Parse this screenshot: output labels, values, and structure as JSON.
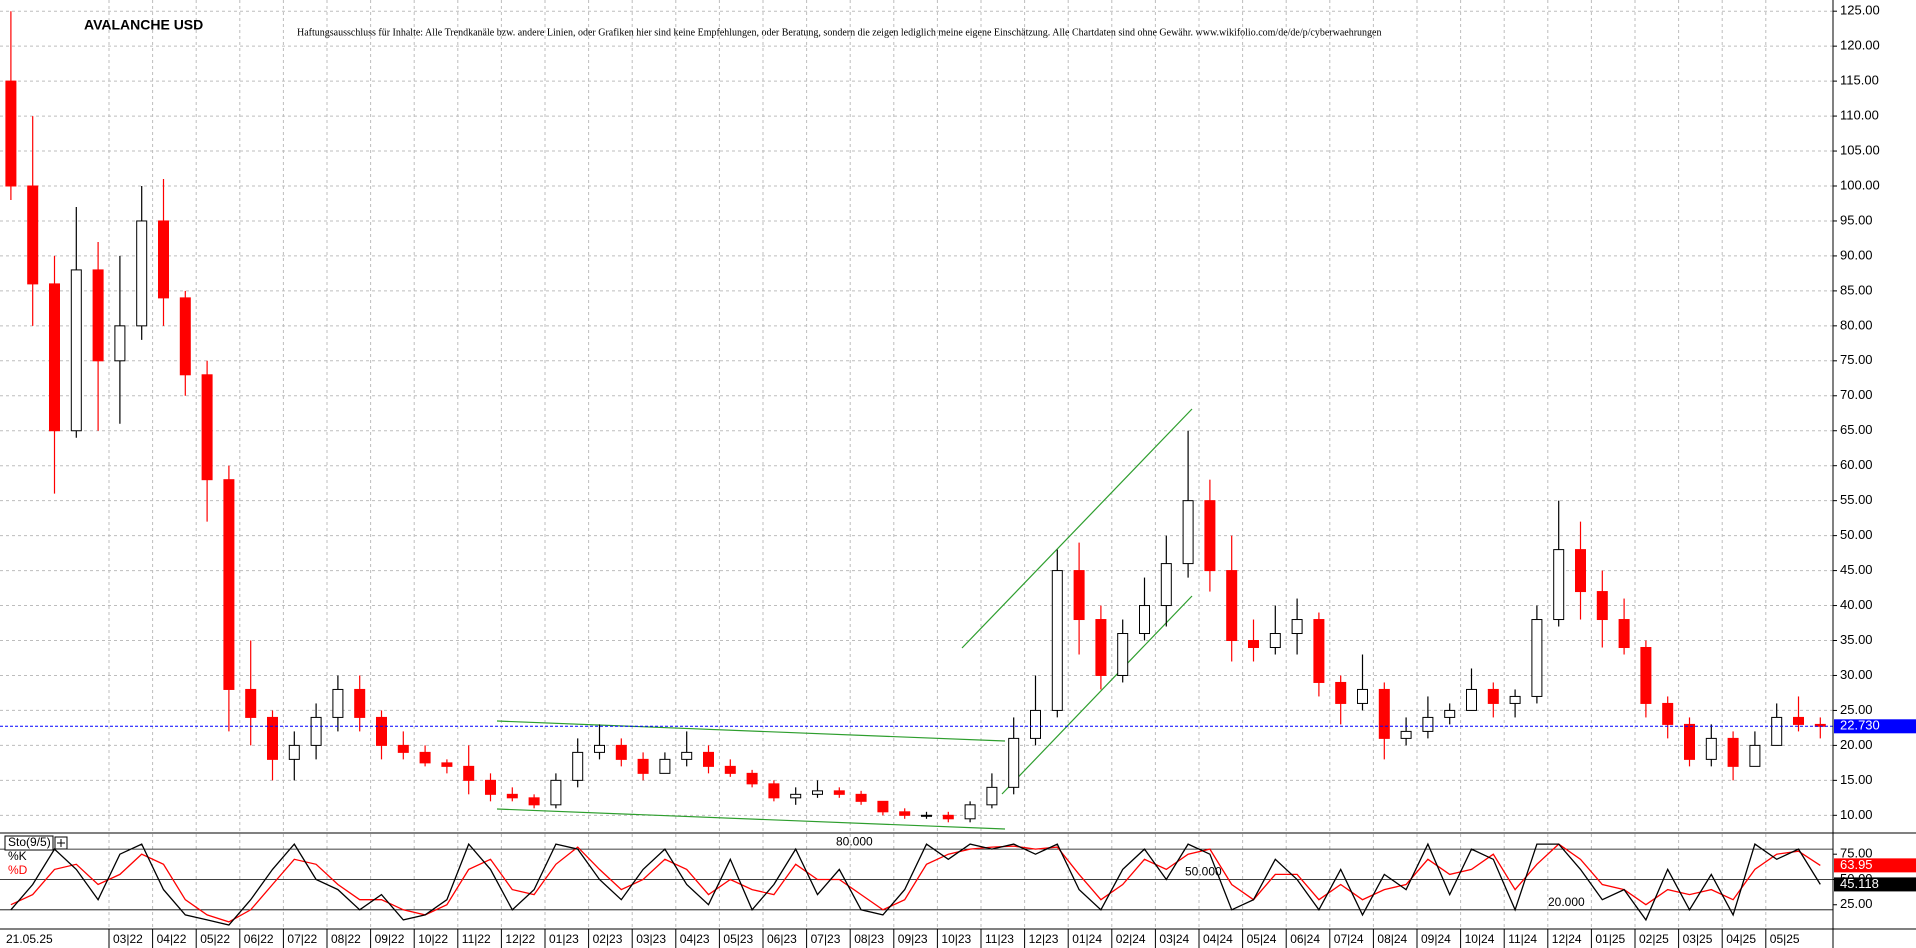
{
  "chart_data": [
    {
      "type": "candlestick",
      "title": "AVALANCHE USD",
      "disclaimer": "Haftungsausschluss für Inhalte: Alle Trendkanäle bzw. andere Linien, oder Grafiken hier sind keine Empfehlungen, oder Beratung, sondern die zeigen lediglich meine eigene Einschätzung. Alle Chartdaten sind ohne Gewähr.  www.wikifolio.com/de/de/p/cyberwaehrungen",
      "date_label": "21.05.25",
      "up_color": "#000000",
      "down_color": "#ff0000",
      "categories": [
        null,
        null,
        null,
        null,
        null,
        "03|22",
        null,
        "04|22",
        null,
        "05|22",
        null,
        "06|22",
        null,
        "07|22",
        null,
        "08|22",
        null,
        "09|22",
        null,
        "10|22",
        null,
        "11|22",
        null,
        "12|22",
        null,
        "01|23",
        null,
        "02|23",
        null,
        "03|23",
        null,
        "04|23",
        null,
        "05|23",
        null,
        "06|23",
        null,
        "07|23",
        null,
        "08|23",
        null,
        "09|23",
        null,
        "10|23",
        null,
        "11|23",
        null,
        "12|23",
        null,
        "01|24",
        null,
        "02|24",
        null,
        "03|24",
        null,
        "04|24",
        null,
        "05|24",
        null,
        "06|24",
        null,
        "07|24",
        null,
        "08|24",
        null,
        "09|24",
        null,
        "10|24",
        null,
        "11|24",
        null,
        "12|24",
        null,
        "01|25",
        null,
        "02|25",
        null,
        "03|25",
        null,
        "04|25",
        null,
        "05|25",
        null,
        null
      ],
      "open": [
        115,
        100,
        86,
        65,
        88,
        75,
        80,
        95,
        84,
        73,
        58,
        28,
        24,
        18,
        20,
        24,
        28,
        24,
        20,
        19,
        17.5,
        17,
        15,
        13,
        12.5,
        11.5,
        15,
        19,
        20,
        18,
        16,
        18,
        19,
        17,
        16,
        14.5,
        12.5,
        13,
        13.5,
        13,
        12,
        10.5,
        10,
        10,
        9.5,
        11.5,
        14,
        21,
        25,
        45,
        38,
        30,
        36,
        40,
        46,
        55,
        45,
        35,
        34,
        36,
        38,
        29,
        26,
        28,
        21,
        22,
        24,
        25,
        28,
        26,
        27,
        38,
        48,
        42,
        38,
        34,
        26,
        23,
        18,
        21,
        17,
        20,
        24,
        23
      ],
      "high": [
        125,
        110,
        90,
        97,
        92,
        90,
        100,
        101,
        85,
        75,
        60,
        35,
        25,
        22,
        26,
        30,
        30,
        25,
        22,
        20,
        18,
        20,
        16,
        14,
        13,
        16,
        21,
        23,
        21,
        19,
        19,
        22,
        20,
        18,
        16.5,
        15,
        14,
        15,
        14,
        13.5,
        12,
        11,
        10.5,
        10.5,
        12,
        16,
        24,
        30,
        48,
        49,
        40,
        38,
        44,
        50,
        65,
        58,
        50,
        38,
        40,
        41,
        39,
        30,
        33,
        29,
        24,
        27,
        26,
        31,
        29,
        28,
        40,
        55,
        52,
        45,
        41,
        35,
        27,
        24,
        23,
        22,
        22,
        26,
        27,
        24
      ],
      "low": [
        98,
        80,
        56,
        64,
        65,
        66,
        78,
        80,
        70,
        52,
        22,
        20,
        15,
        15,
        18,
        22,
        22,
        18,
        18,
        17,
        16,
        13,
        12,
        12,
        11,
        11,
        14,
        18,
        17,
        15,
        16,
        17,
        16,
        15.5,
        14,
        12,
        11.5,
        12.5,
        12.5,
        11.5,
        10,
        9.5,
        9.5,
        9,
        9,
        11,
        13,
        20,
        24,
        33,
        28,
        29,
        35,
        37,
        44,
        42,
        32,
        32,
        33,
        33,
        27,
        23,
        25,
        18,
        20,
        21,
        23,
        25,
        24,
        24,
        26,
        37,
        38,
        34,
        33,
        24,
        21,
        17,
        17,
        15,
        17,
        20,
        22,
        21
      ],
      "close": [
        100,
        86,
        65,
        88,
        75,
        80,
        95,
        84,
        73,
        58,
        28,
        24,
        18,
        20,
        24,
        28,
        24,
        20,
        19,
        17.5,
        17,
        15,
        13,
        12.5,
        11.5,
        15,
        19,
        20,
        18,
        16,
        18,
        19,
        17,
        16,
        14.5,
        12.5,
        13,
        13.5,
        13,
        12,
        10.5,
        10,
        10,
        9.5,
        11.5,
        14,
        21,
        25,
        45,
        38,
        30,
        36,
        40,
        46,
        55,
        45,
        35,
        34,
        36,
        38,
        29,
        26,
        28,
        21,
        22,
        24,
        25,
        28,
        26,
        27,
        38,
        48,
        42,
        38,
        34,
        26,
        23,
        18,
        21,
        17,
        20,
        24,
        23,
        22.73
      ],
      "last_price": {
        "value": 22.73,
        "label": "22.730"
      },
      "ylim": [
        7.9,
        126.6
      ],
      "yticks": [
        {
          "value": 10,
          "label": "10.00"
        },
        {
          "value": 15,
          "label": "15.00"
        },
        {
          "value": 20,
          "label": "20.00"
        },
        {
          "value": 25,
          "label": "25.00"
        },
        {
          "value": 30,
          "label": "30.00"
        },
        {
          "value": 35,
          "label": "35.00"
        },
        {
          "value": 40,
          "label": "40.00"
        },
        {
          "value": 45,
          "label": "45.00"
        },
        {
          "value": 50,
          "label": "50.00"
        },
        {
          "value": 55,
          "label": "55.00"
        },
        {
          "value": 60,
          "label": "60.00"
        },
        {
          "value": 65,
          "label": "65.00"
        },
        {
          "value": 70,
          "label": "70.00"
        },
        {
          "value": 75,
          "label": "75.00"
        },
        {
          "value": 80,
          "label": "80.00"
        },
        {
          "value": 85,
          "label": "85.00"
        },
        {
          "value": 90,
          "label": "90.00"
        },
        {
          "value": 95,
          "label": "95.00"
        },
        {
          "value": 100,
          "label": "100.00"
        },
        {
          "value": 105,
          "label": "105.00"
        },
        {
          "value": 110,
          "label": "110.00"
        },
        {
          "value": 115,
          "label": "115.00"
        },
        {
          "value": 120,
          "label": "120.00"
        },
        {
          "value": 125,
          "label": "125.00"
        }
      ],
      "grid": true
    },
    {
      "type": "line",
      "indicator": "Sto(9/5)",
      "series": [
        {
          "name": "%K",
          "color": "#000000",
          "values": [
            20,
            45,
            80,
            60,
            30,
            75,
            85,
            40,
            15,
            10,
            5,
            30,
            60,
            85,
            50,
            40,
            20,
            35,
            10,
            15,
            30,
            85,
            60,
            20,
            40,
            85,
            80,
            50,
            30,
            60,
            80,
            45,
            25,
            70,
            20,
            45,
            80,
            35,
            60,
            20,
            15,
            40,
            85,
            70,
            85,
            80,
            85,
            75,
            85,
            40,
            20,
            60,
            80,
            50,
            85,
            75,
            20,
            30,
            70,
            50,
            20,
            60,
            15,
            55,
            40,
            85,
            35,
            80,
            70,
            20,
            85,
            85,
            60,
            30,
            40,
            10,
            60,
            20,
            55,
            15,
            85,
            70,
            80,
            45.118
          ]
        },
        {
          "name": "%D",
          "color": "#ff0000",
          "values": [
            25,
            35,
            60,
            65,
            45,
            55,
            75,
            65,
            30,
            15,
            8,
            20,
            45,
            70,
            65,
            45,
            30,
            30,
            20,
            15,
            25,
            60,
            70,
            40,
            35,
            65,
            82,
            60,
            40,
            50,
            70,
            60,
            35,
            50,
            40,
            35,
            65,
            50,
            50,
            35,
            20,
            30,
            65,
            75,
            80,
            82,
            83,
            80,
            82,
            55,
            30,
            45,
            70,
            60,
            75,
            80,
            45,
            30,
            55,
            55,
            30,
            45,
            30,
            40,
            45,
            70,
            55,
            60,
            75,
            40,
            65,
            85,
            70,
            45,
            40,
            25,
            40,
            35,
            40,
            30,
            60,
            75,
            78,
            63.95
          ]
        }
      ],
      "levels": [
        {
          "value": 80,
          "label": "80.000"
        },
        {
          "value": 50,
          "label": "50.000"
        },
        {
          "value": 20,
          "label": "20.000"
        }
      ],
      "ylim": [
        2,
        93
      ],
      "yticks": [
        {
          "value": 25,
          "label": "25.00"
        },
        {
          "value": 50,
          "label": "50.00"
        },
        {
          "value": 75,
          "label": "75.00"
        }
      ]
    }
  ]
}
